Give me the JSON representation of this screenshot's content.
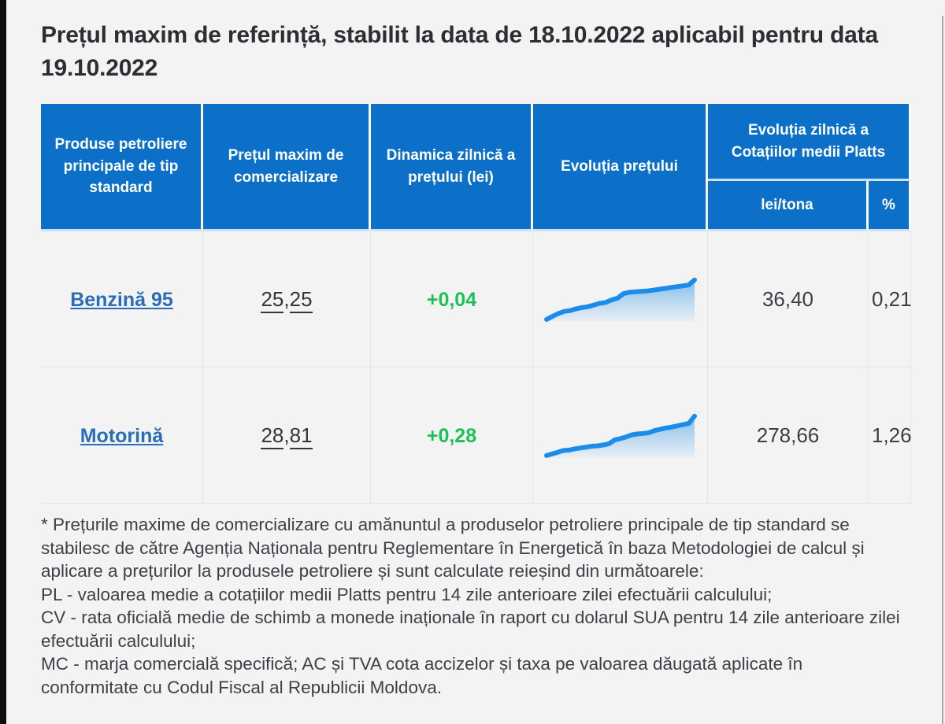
{
  "page": {
    "title": "Prețul maxim de referință, stabilit la data de 18.10.2022 aplicabil pentru data 19.10.2022",
    "background": "#f3f3f4",
    "accent_blue": "#0c70c8",
    "link_blue": "#2a6db7",
    "positive_green": "#1cc155",
    "sparkline_blue": "#1b8ce8"
  },
  "table": {
    "headers": {
      "product": "Produse petroliere principale de tip standard",
      "max_price": "Prețul maxim de comercializare",
      "daily_dynamic": "Dinamica zilnică a prețului (lei)",
      "price_evolution": "Evoluția prețului",
      "platts_group": "Evoluția zilnică a Cotațiilor medii Platts",
      "platts_lei": "lei/tona",
      "platts_pct": "%"
    },
    "rows": [
      {
        "product": "Benzină 95",
        "price_int": "25",
        "price_sep": ",",
        "price_dec": "25",
        "dynamic": "+0,04",
        "platts_lei": "36,40",
        "platts_pct": "0,21"
      },
      {
        "product": "Motorină",
        "price_int": "28",
        "price_sep": ",",
        "price_dec": "81",
        "dynamic": "+0,28",
        "platts_lei": "278,66",
        "platts_pct": "1,26"
      }
    ]
  },
  "chart_data": [
    {
      "type": "area",
      "name": "Benzină 95 — evoluția prețului (sparkline, fără axe)",
      "color": "#1b8ce8",
      "values": [
        2,
        9,
        16,
        21,
        23,
        27,
        30,
        32,
        36,
        40,
        42,
        48,
        52,
        63,
        66,
        67,
        68,
        69,
        71,
        73,
        75,
        77,
        79,
        81,
        83,
        95
      ]
    },
    {
      "type": "area",
      "name": "Motorină — evoluția prețului (sparkline, fără axe)",
      "color": "#1b8ce8",
      "values": [
        2,
        6,
        10,
        14,
        15,
        18,
        20,
        22,
        24,
        25,
        27,
        30,
        39,
        42,
        46,
        51,
        53,
        54,
        56,
        61,
        64,
        67,
        69,
        72,
        75,
        78,
        95
      ]
    }
  ],
  "footnotes": [
    "* Prețurile maxime de comercializare cu amănuntul a produselor petroliere principale de tip standard se stabilesc de către Agenția Naționala pentru Reglementare în Energetică în baza Metodologiei de calcul și aplicare a prețurilor la produsele petroliere și sunt calculate reieșind din următoarele:",
    "PL - valoarea medie a cotațiilor medii Platts pentru 14 zile anterioare zilei efectuării calculului;",
    "CV - rata oficială medie de schimb a monede inaționale în raport cu dolarul SUA pentru 14 zile anterioare zilei efectuării calculului;",
    "MC - marja comercială specifică; AC și TVA cota accizelor și taxa pe valoarea dăugată aplicate în conformitate cu Codul Fiscal al Republicii Moldova."
  ]
}
